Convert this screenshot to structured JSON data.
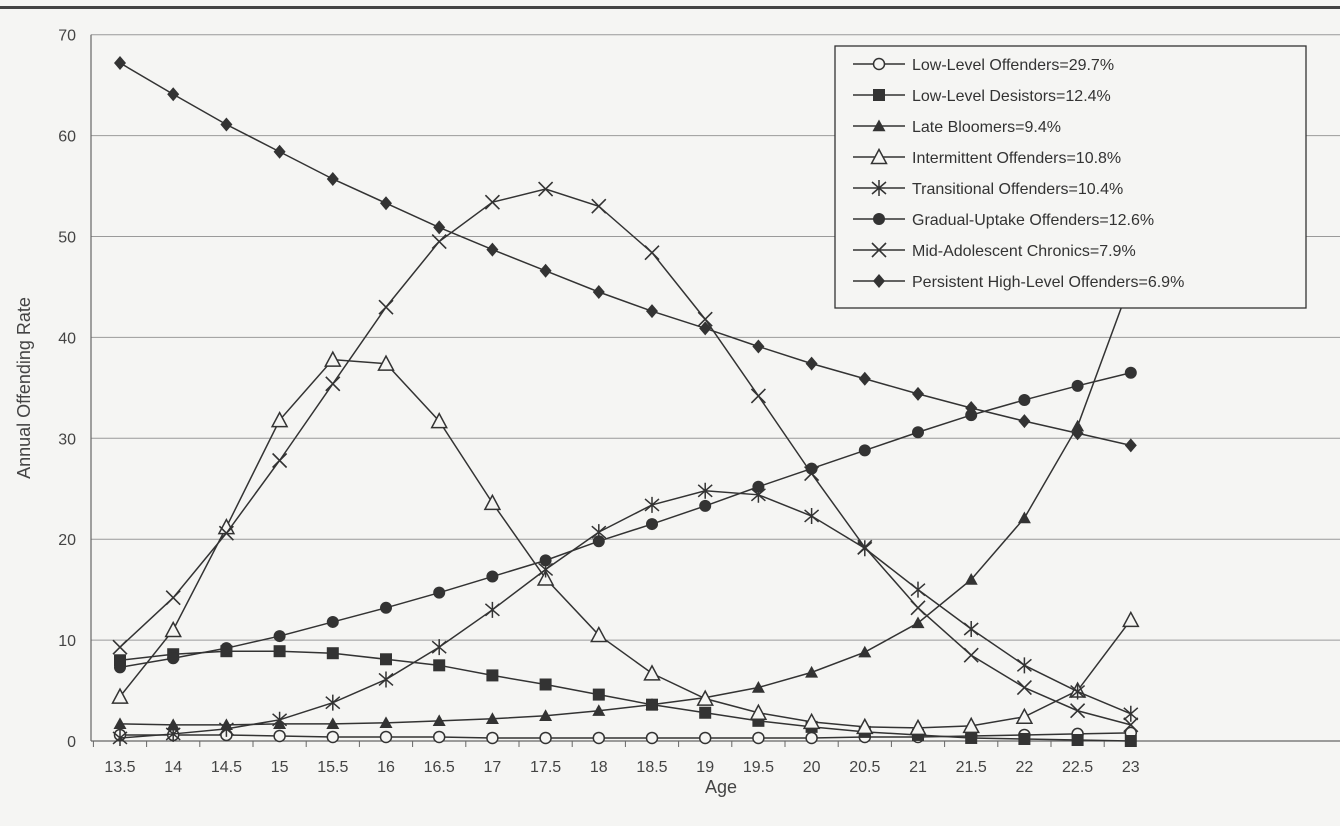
{
  "chart_data": {
    "type": "line",
    "title": "",
    "xlabel": "Age",
    "ylabel": "Annual Offending Rate",
    "ylim": [
      0,
      70
    ],
    "yticks": [
      0,
      10,
      20,
      30,
      40,
      50,
      60,
      70
    ],
    "grid": true,
    "legend_position": "top-right",
    "x": [
      13.5,
      14,
      14.5,
      15,
      15.5,
      16,
      16.5,
      17,
      17.5,
      18,
      18.5,
      19,
      19.5,
      20,
      20.5,
      21,
      21.5,
      22,
      22.5,
      23
    ],
    "x_labels": [
      "13.5",
      "14",
      "14.5",
      "15",
      "15.5",
      "16",
      "16.5",
      "17",
      "17.5",
      "18",
      "18.5",
      "19",
      "19.5",
      "20",
      "20.5",
      "21",
      "21.5",
      "22",
      "22.5",
      "23"
    ],
    "series": [
      {
        "name": "Low-Level Offenders=29.7%",
        "marker": "circle-open",
        "values": [
          0.6,
          0.6,
          0.6,
          0.5,
          0.4,
          0.4,
          0.4,
          0.3,
          0.3,
          0.3,
          0.3,
          0.3,
          0.3,
          0.3,
          0.4,
          0.4,
          0.5,
          0.6,
          0.7,
          0.8
        ]
      },
      {
        "name": "Low-Level Desistors=12.4%",
        "marker": "square-filled",
        "values": [
          8.0,
          8.6,
          8.9,
          8.9,
          8.7,
          8.1,
          7.5,
          6.5,
          5.6,
          4.6,
          3.6,
          2.8,
          2.0,
          1.4,
          0.9,
          0.6,
          0.3,
          0.2,
          0.1,
          0.0
        ]
      },
      {
        "name": "Late Bloomers=9.4%",
        "marker": "triangle-filled",
        "values": [
          1.7,
          1.6,
          1.6,
          1.7,
          1.7,
          1.8,
          2.0,
          2.2,
          2.5,
          3.0,
          3.6,
          4.3,
          5.3,
          6.8,
          8.8,
          11.7,
          16.0,
          22.1,
          31.2,
          45.5
        ]
      },
      {
        "name": "Intermittent Offenders=10.8%",
        "marker": "triangle-open",
        "values": [
          4.4,
          11.0,
          21.2,
          31.8,
          37.8,
          37.4,
          31.7,
          23.6,
          16.1,
          10.5,
          6.7,
          4.2,
          2.8,
          1.9,
          1.4,
          1.3,
          1.5,
          2.4,
          5.0,
          12.0
        ]
      },
      {
        "name": "Transitional Offenders=10.4%",
        "marker": "asterisk",
        "values": [
          0.3,
          0.7,
          1.2,
          2.1,
          3.8,
          6.1,
          9.3,
          13.0,
          17.0,
          20.7,
          23.4,
          24.8,
          24.4,
          22.3,
          19.1,
          15.0,
          11.1,
          7.5,
          4.9,
          2.7
        ]
      },
      {
        "name": "Gradual-Uptake Offenders=12.6%",
        "marker": "circle-filled",
        "values": [
          7.3,
          8.2,
          9.2,
          10.4,
          11.8,
          13.2,
          14.7,
          16.3,
          17.9,
          19.8,
          21.5,
          23.3,
          25.2,
          27.0,
          28.8,
          30.6,
          32.3,
          33.8,
          35.2,
          36.5
        ]
      },
      {
        "name": "Mid-Adolescent Chronics=7.9%",
        "marker": "x",
        "values": [
          9.3,
          14.2,
          20.6,
          27.8,
          35.4,
          43.0,
          49.5,
          53.4,
          54.7,
          53.0,
          48.4,
          41.8,
          34.2,
          26.5,
          19.2,
          13.2,
          8.5,
          5.3,
          3.0,
          1.6
        ]
      },
      {
        "name": "Persistent High-Level Offenders=6.9%",
        "marker": "diamond-filled",
        "values": [
          67.2,
          64.1,
          61.1,
          58.4,
          55.7,
          53.3,
          50.9,
          48.7,
          46.6,
          44.5,
          42.6,
          40.9,
          39.1,
          37.4,
          35.9,
          34.4,
          33.0,
          31.7,
          30.5,
          29.3
        ]
      }
    ]
  }
}
